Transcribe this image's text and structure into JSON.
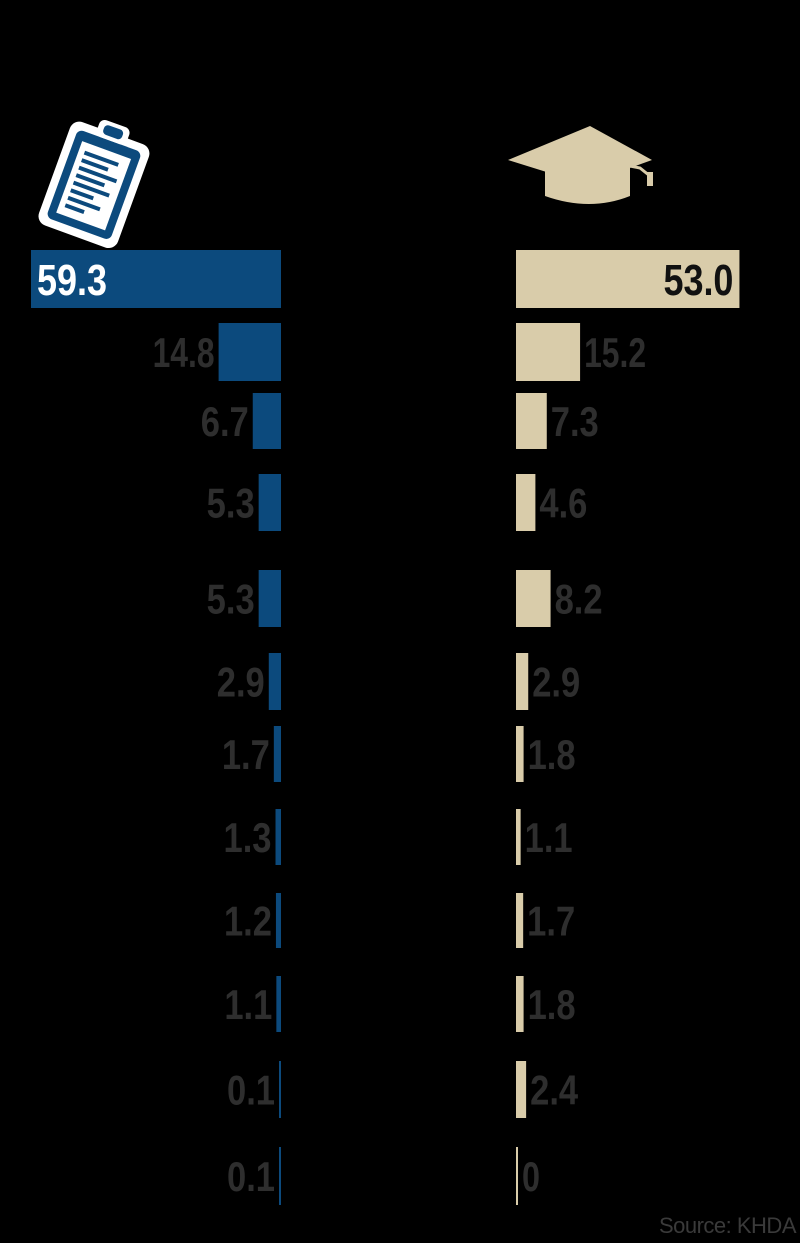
{
  "chart_data": {
    "type": "bar",
    "series": [
      {
        "icon": "clipboard-icon",
        "color": "#0c4a7d",
        "values": [
          59.3,
          14.8,
          6.7,
          5.3,
          5.3,
          2.9,
          1.7,
          1.3,
          1.2,
          1.1,
          0.1,
          0.1
        ],
        "labels": [
          "59.3",
          "14.8",
          "6.7",
          "5.3",
          "5.3",
          "2.9",
          "1.7",
          "1.3",
          "1.2",
          "1.1",
          "0.1",
          "0.1"
        ]
      },
      {
        "icon": "graduation-cap-icon",
        "color": "#d9ccaa",
        "values": [
          53.0,
          15.2,
          7.3,
          4.6,
          8.2,
          2.9,
          1.8,
          1.1,
          1.7,
          1.8,
          2.4,
          0
        ],
        "labels": [
          "53.0",
          "15.2",
          "7.3",
          "4.6",
          "8.2",
          "2.9",
          "1.8",
          "1.1",
          "1.7",
          "1.8",
          "2.4",
          "0"
        ]
      }
    ],
    "label_color": "#2e2e2e",
    "highlight_label_colors": [
      "#ffffff",
      "#111111"
    ]
  },
  "footer": {
    "source": "Source: KHDA"
  }
}
